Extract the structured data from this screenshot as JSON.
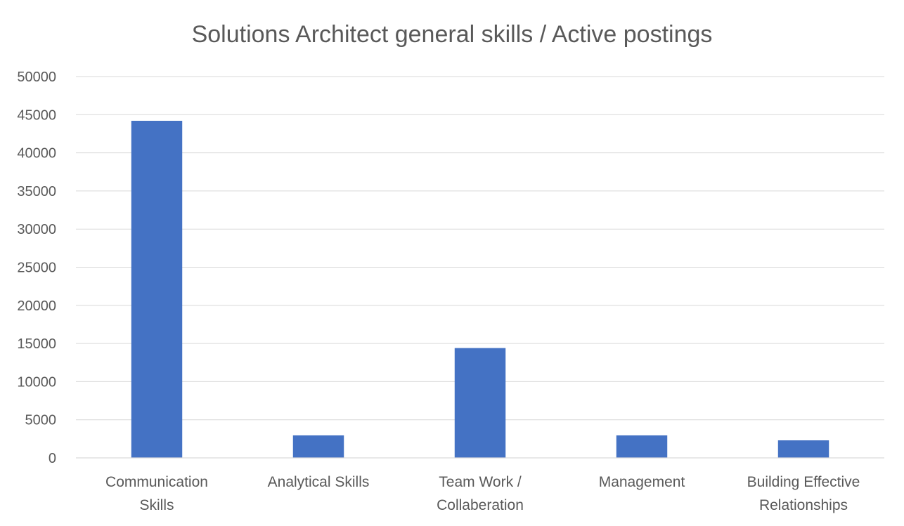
{
  "chart_data": {
    "type": "bar",
    "title": "Solutions Architect general skills / Active postings",
    "xlabel": "",
    "ylabel": "",
    "categories": [
      [
        "Communication",
        "Skills"
      ],
      [
        "Analytical Skills"
      ],
      [
        "Team Work /",
        "Collaberation"
      ],
      [
        "Management"
      ],
      [
        "Building Effective",
        "Relationships"
      ]
    ],
    "values": [
      44200,
      2950,
      14400,
      2950,
      2300
    ],
    "ylim": [
      0,
      50000
    ],
    "yticks": [
      0,
      5000,
      10000,
      15000,
      20000,
      25000,
      30000,
      35000,
      40000,
      45000,
      50000
    ],
    "grid": true,
    "legend": "none",
    "bar_color": "#4472C4"
  }
}
